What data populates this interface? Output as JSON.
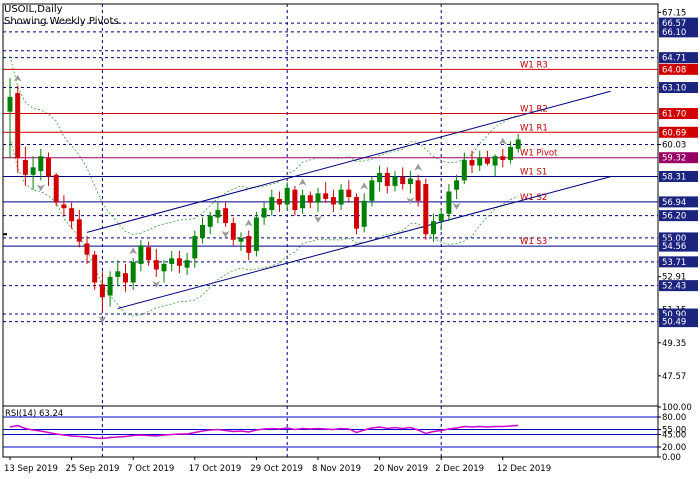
{
  "header": {
    "symbol": "USOIL,Daily",
    "subtitle": "Showing Weekly Pivots."
  },
  "colors": {
    "bull": "#008000",
    "bear": "#d00000",
    "resistance": "#cc0000",
    "pivot": "#990066",
    "support": "#000080",
    "channel": "#000080",
    "band": "#3aa03a",
    "rsi": "#d000d0",
    "tag_red": "#d00000",
    "tag_navy": "#1a237e"
  },
  "chart_data": [
    {
      "type": "candlestick",
      "symbol": "USOIL",
      "timeframe": "Daily",
      "ylim": [
        46.0,
        67.6
      ],
      "y_ticks": [
        67.15,
        60.03,
        52.91,
        51.15,
        49.35,
        47.57
      ],
      "x_tick_labels": [
        "13 Sep 2019",
        "25 Sep 2019",
        "7 Oct 2019",
        "17 Oct 2019",
        "29 Oct 2019",
        "8 Nov 2019",
        "20 Nov 2019",
        "2 Dec 2019",
        "12 Dec 2019"
      ],
      "x_tick_index": [
        0,
        8,
        16,
        24,
        32,
        40,
        48,
        56,
        64
      ],
      "vertical_grid_index": [
        12,
        36,
        56
      ],
      "candles": [
        {
          "o": 61.8,
          "h": 63.6,
          "l": 59.3,
          "c": 62.6
        },
        {
          "o": 62.8,
          "h": 63.2,
          "l": 58.5,
          "c": 59.3
        },
        {
          "o": 59.2,
          "h": 59.9,
          "l": 57.8,
          "c": 58.4
        },
        {
          "o": 58.4,
          "h": 59.4,
          "l": 57.6,
          "c": 58.8
        },
        {
          "o": 58.6,
          "h": 59.8,
          "l": 58.1,
          "c": 59.4
        },
        {
          "o": 59.3,
          "h": 59.6,
          "l": 57.8,
          "c": 58.3
        },
        {
          "o": 58.4,
          "h": 58.5,
          "l": 56.7,
          "c": 56.9
        },
        {
          "o": 56.8,
          "h": 57.3,
          "l": 56.2,
          "c": 56.6
        },
        {
          "o": 56.6,
          "h": 56.9,
          "l": 55.5,
          "c": 55.9
        },
        {
          "o": 56.0,
          "h": 56.5,
          "l": 54.5,
          "c": 54.8
        },
        {
          "o": 54.7,
          "h": 55.1,
          "l": 53.6,
          "c": 54.1
        },
        {
          "o": 54.1,
          "h": 54.3,
          "l": 52.2,
          "c": 52.6
        },
        {
          "o": 52.5,
          "h": 53.2,
          "l": 51.0,
          "c": 51.8
        },
        {
          "o": 51.9,
          "h": 53.2,
          "l": 51.3,
          "c": 52.9
        },
        {
          "o": 52.9,
          "h": 53.8,
          "l": 52.4,
          "c": 53.2
        },
        {
          "o": 53.1,
          "h": 53.6,
          "l": 52.1,
          "c": 52.6
        },
        {
          "o": 52.6,
          "h": 53.9,
          "l": 52.2,
          "c": 53.7
        },
        {
          "o": 53.6,
          "h": 54.9,
          "l": 53.2,
          "c": 54.6
        },
        {
          "o": 54.5,
          "h": 54.8,
          "l": 53.5,
          "c": 53.8
        },
        {
          "o": 53.8,
          "h": 54.4,
          "l": 52.9,
          "c": 53.3
        },
        {
          "o": 53.2,
          "h": 53.8,
          "l": 52.6,
          "c": 53.6
        },
        {
          "o": 53.6,
          "h": 54.3,
          "l": 53.2,
          "c": 53.9
        },
        {
          "o": 53.9,
          "h": 54.3,
          "l": 53.1,
          "c": 53.5
        },
        {
          "o": 53.4,
          "h": 54.2,
          "l": 53.0,
          "c": 53.8
        },
        {
          "o": 53.9,
          "h": 55.4,
          "l": 53.4,
          "c": 55.1
        },
        {
          "o": 55.0,
          "h": 56.1,
          "l": 54.7,
          "c": 55.7
        },
        {
          "o": 55.6,
          "h": 56.4,
          "l": 55.2,
          "c": 56.2
        },
        {
          "o": 56.1,
          "h": 56.9,
          "l": 55.8,
          "c": 56.5
        },
        {
          "o": 56.6,
          "h": 56.9,
          "l": 55.6,
          "c": 55.8
        },
        {
          "o": 55.8,
          "h": 56.1,
          "l": 54.6,
          "c": 54.9
        },
        {
          "o": 54.8,
          "h": 55.3,
          "l": 54.3,
          "c": 55.0
        },
        {
          "o": 55.1,
          "h": 55.4,
          "l": 53.8,
          "c": 54.2
        },
        {
          "o": 54.3,
          "h": 56.4,
          "l": 54.0,
          "c": 56.1
        },
        {
          "o": 56.1,
          "h": 56.9,
          "l": 55.7,
          "c": 56.6
        },
        {
          "o": 56.5,
          "h": 57.6,
          "l": 56.2,
          "c": 57.2
        },
        {
          "o": 57.1,
          "h": 57.5,
          "l": 56.4,
          "c": 56.8
        },
        {
          "o": 56.8,
          "h": 58.0,
          "l": 56.5,
          "c": 57.7
        },
        {
          "o": 57.6,
          "h": 57.8,
          "l": 56.2,
          "c": 56.5
        },
        {
          "o": 56.6,
          "h": 57.6,
          "l": 56.3,
          "c": 57.3
        },
        {
          "o": 57.3,
          "h": 57.5,
          "l": 56.6,
          "c": 56.9
        },
        {
          "o": 56.9,
          "h": 57.7,
          "l": 56.4,
          "c": 57.4
        },
        {
          "o": 57.4,
          "h": 58.0,
          "l": 56.9,
          "c": 57.1
        },
        {
          "o": 57.2,
          "h": 57.6,
          "l": 56.4,
          "c": 56.8
        },
        {
          "o": 56.8,
          "h": 57.9,
          "l": 56.5,
          "c": 57.6
        },
        {
          "o": 57.6,
          "h": 58.1,
          "l": 56.9,
          "c": 57.2
        },
        {
          "o": 57.2,
          "h": 57.4,
          "l": 55.2,
          "c": 55.5
        },
        {
          "o": 55.6,
          "h": 57.4,
          "l": 55.3,
          "c": 57.0
        },
        {
          "o": 57.0,
          "h": 58.3,
          "l": 56.7,
          "c": 58.1
        },
        {
          "o": 58.0,
          "h": 58.9,
          "l": 57.5,
          "c": 58.5
        },
        {
          "o": 58.5,
          "h": 58.8,
          "l": 57.4,
          "c": 57.8
        },
        {
          "o": 57.8,
          "h": 58.6,
          "l": 57.5,
          "c": 58.3
        },
        {
          "o": 58.3,
          "h": 58.8,
          "l": 57.6,
          "c": 57.9
        },
        {
          "o": 57.9,
          "h": 58.6,
          "l": 57.4,
          "c": 58.2
        },
        {
          "o": 58.1,
          "h": 58.4,
          "l": 56.7,
          "c": 57.0
        },
        {
          "o": 57.9,
          "h": 58.2,
          "l": 54.9,
          "c": 55.2
        },
        {
          "o": 55.2,
          "h": 56.3,
          "l": 54.8,
          "c": 55.9
        },
        {
          "o": 55.9,
          "h": 56.6,
          "l": 55.4,
          "c": 56.3
        },
        {
          "o": 56.3,
          "h": 57.9,
          "l": 55.9,
          "c": 57.5
        },
        {
          "o": 57.6,
          "h": 58.4,
          "l": 57.1,
          "c": 58.1
        },
        {
          "o": 58.1,
          "h": 59.6,
          "l": 57.9,
          "c": 59.2
        },
        {
          "o": 59.2,
          "h": 59.7,
          "l": 58.5,
          "c": 58.9
        },
        {
          "o": 58.9,
          "h": 59.7,
          "l": 58.6,
          "c": 59.3
        },
        {
          "o": 59.3,
          "h": 59.7,
          "l": 58.9,
          "c": 59.0
        },
        {
          "o": 58.9,
          "h": 59.5,
          "l": 58.3,
          "c": 59.4
        },
        {
          "o": 59.4,
          "h": 59.8,
          "l": 58.8,
          "c": 59.2
        },
        {
          "o": 59.2,
          "h": 60.2,
          "l": 59.0,
          "c": 59.9
        },
        {
          "o": 59.8,
          "h": 60.6,
          "l": 59.6,
          "c": 60.3
        }
      ],
      "pivots": [
        {
          "label": "W1 R3",
          "value": 64.08,
          "kind": "resistance"
        },
        {
          "label": "W1 R2",
          "value": 61.7,
          "kind": "resistance"
        },
        {
          "label": "W1 R1",
          "value": 60.69,
          "kind": "resistance"
        },
        {
          "label": "W1 Pivot",
          "value": 59.32,
          "kind": "pivot"
        },
        {
          "label": "W1 S1",
          "value": 58.31,
          "kind": "support"
        },
        {
          "label": "W1 S2",
          "value": 56.94,
          "kind": "support"
        },
        {
          "label": "W1 S3",
          "value": 54.56,
          "kind": "support"
        }
      ],
      "dashed_levels": [
        66.57,
        66.1,
        65.08,
        64.71,
        63.1,
        60.03,
        56.2,
        55.0,
        53.71,
        52.43,
        50.9,
        50.49
      ],
      "price_tags": [
        {
          "value": "66.57",
          "color": "navy"
        },
        {
          "value": "66.10",
          "color": "navy"
        },
        {
          "value": "64.71",
          "color": "navy"
        },
        {
          "value": "64.08",
          "color": "red"
        },
        {
          "value": "63.10",
          "color": "navy"
        },
        {
          "value": "61.70",
          "color": "red"
        },
        {
          "value": "60.69",
          "color": "red"
        },
        {
          "value": "59.32",
          "color": "pivot"
        },
        {
          "value": "58.31",
          "color": "navy"
        },
        {
          "value": "56.94",
          "color": "navy"
        },
        {
          "value": "56.20",
          "color": "navy"
        },
        {
          "value": "55.00",
          "color": "navy"
        },
        {
          "value": "54.56",
          "color": "navy"
        },
        {
          "value": "53.71",
          "color": "navy"
        },
        {
          "value": "52.43",
          "color": "navy"
        },
        {
          "value": "50.90",
          "color": "navy"
        },
        {
          "value": "50.49",
          "color": "navy"
        }
      ],
      "channel": {
        "upper": [
          {
            "i": 10,
            "v": 55.3
          },
          {
            "i": 78,
            "v": 62.9
          }
        ],
        "lower": [
          {
            "i": 14,
            "v": 51.2
          },
          {
            "i": 78,
            "v": 58.3
          }
        ],
        "marker": {
          "i": 0,
          "v": 55.2
        }
      },
      "fractals_up": [
        1,
        16,
        31,
        38,
        46,
        53,
        64
      ],
      "fractals_down": [
        4,
        12,
        19,
        28,
        40,
        52,
        58
      ]
    },
    {
      "type": "line",
      "title": "RSI(14) 63.24",
      "ylim": [
        0,
        100
      ],
      "levels": [
        80,
        55,
        45,
        20
      ],
      "y_tick_labels": [
        "100.00",
        "80.00",
        "55.00",
        "45.00",
        "20.00",
        "0.00"
      ],
      "y_tick_values": [
        100,
        80,
        55,
        45,
        20,
        0
      ],
      "values": [
        60,
        63,
        57,
        54,
        52,
        49,
        46,
        44,
        42,
        41,
        40,
        38,
        37,
        39,
        40,
        41,
        43,
        44,
        43,
        42,
        44,
        45,
        46,
        46,
        49,
        52,
        54,
        55,
        53,
        51,
        52,
        50,
        54,
        56,
        57,
        56,
        58,
        55,
        57,
        56,
        57,
        56,
        55,
        57,
        56,
        49,
        54,
        58,
        60,
        57,
        59,
        57,
        59,
        54,
        47,
        51,
        53,
        56,
        58,
        61,
        60,
        61,
        60,
        61,
        61,
        62,
        63.24
      ]
    }
  ]
}
